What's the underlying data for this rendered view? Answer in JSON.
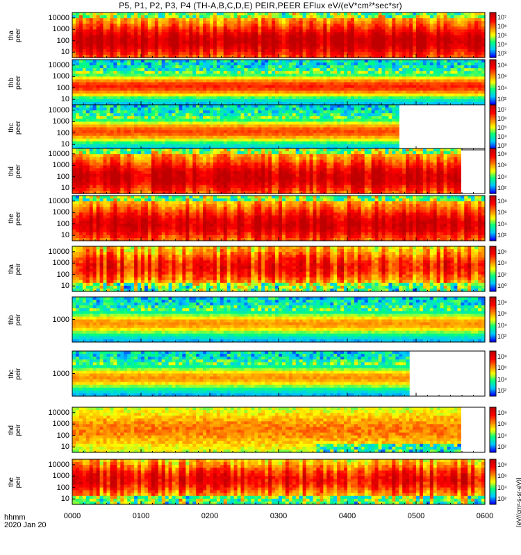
{
  "title": "P5, P1, P2, P3, P4 (TH-A,B,C,D,E) PEIR,PEER EFlux eV/(eV*cm²*sec*sr)",
  "footer": {
    "label1": "hhmm",
    "label2": "2020 Jan 20"
  },
  "colorbar_units": "[eV/(cm²-s-sr-eV)]",
  "chart_data": {
    "type": "heatmap",
    "x_ticks": [
      "0000",
      "0100",
      "0200",
      "0300",
      "0400",
      "0500",
      "0600"
    ],
    "x_range_hhmm": [
      "0000",
      "0600"
    ],
    "y_scale": "log",
    "colormap": [
      "#0000ff",
      "#00c8ff",
      "#00ff80",
      "#ffff00",
      "#ff8000",
      "#ff0000",
      "#c00000"
    ],
    "panels": [
      {
        "label": "tha\npeer",
        "yticks": [
          "10000",
          "1000",
          "100",
          "10"
        ],
        "cb": [
          "10⁷",
          "10⁶",
          "10⁵",
          "10⁴",
          "10³"
        ],
        "kind": "peer",
        "base": 0.85,
        "end": 1.0
      },
      {
        "label": "thb\npeer",
        "yticks": [
          "10000",
          "1000",
          "100",
          "10"
        ],
        "cb": [
          "10⁸",
          "10⁶",
          "10⁴",
          "10²"
        ],
        "kind": "bands",
        "base": 0.7,
        "end": 1.0
      },
      {
        "label": "thc\npeer",
        "yticks": [
          "10000",
          "1000",
          "100",
          "10"
        ],
        "cb": [
          "10⁷",
          "10⁶",
          "10⁵",
          "10⁴",
          "10³"
        ],
        "kind": "bands",
        "base": 0.65,
        "end": 0.79
      },
      {
        "label": "thd\npeer",
        "yticks": [
          "10000",
          "1000",
          "100",
          "10"
        ],
        "cb": [
          "10⁸",
          "10⁶",
          "10⁴",
          "10²"
        ],
        "kind": "peer",
        "base": 0.8,
        "end": 0.94
      },
      {
        "label": "the\npeer",
        "yticks": [
          "10000",
          "1000",
          "100",
          "10"
        ],
        "cb": [
          "10⁸",
          "10⁶",
          "10⁴",
          "10²"
        ],
        "kind": "peer",
        "base": 0.8,
        "end": 1.0
      },
      {
        "label": "tha\npeir",
        "yticks": [
          "10000",
          "1000",
          "100",
          "10"
        ],
        "cb": [
          "10⁶",
          "10⁴",
          "10²",
          "10⁰"
        ],
        "kind": "peir",
        "base": 0.7,
        "end": 1.0
      },
      {
        "label": "thb\npeir",
        "yticks": [
          "1000"
        ],
        "cb": [
          "10⁸",
          "10⁶",
          "10⁴",
          "10²"
        ],
        "kind": "bands",
        "base": 0.55,
        "end": 1.0
      },
      {
        "label": "thc\npeir",
        "yticks": [
          "1000"
        ],
        "cb": [
          "10⁸",
          "10⁶",
          "10⁴",
          "10²"
        ],
        "kind": "bands",
        "base": 0.55,
        "end": 0.82
      },
      {
        "label": "thd\npeir",
        "yticks": [
          "10000",
          "1000",
          "100",
          "10"
        ],
        "cb": [
          "10⁸",
          "10⁶",
          "10⁴",
          "10²"
        ],
        "kind": "weak",
        "base": 0.45,
        "end": 0.94
      },
      {
        "label": "the\npeir",
        "yticks": [
          "10000",
          "1000",
          "100",
          "10"
        ],
        "cb": [
          "10⁸",
          "10⁶",
          "10⁴",
          "10²"
        ],
        "kind": "peir",
        "base": 0.8,
        "end": 1.0
      }
    ]
  }
}
